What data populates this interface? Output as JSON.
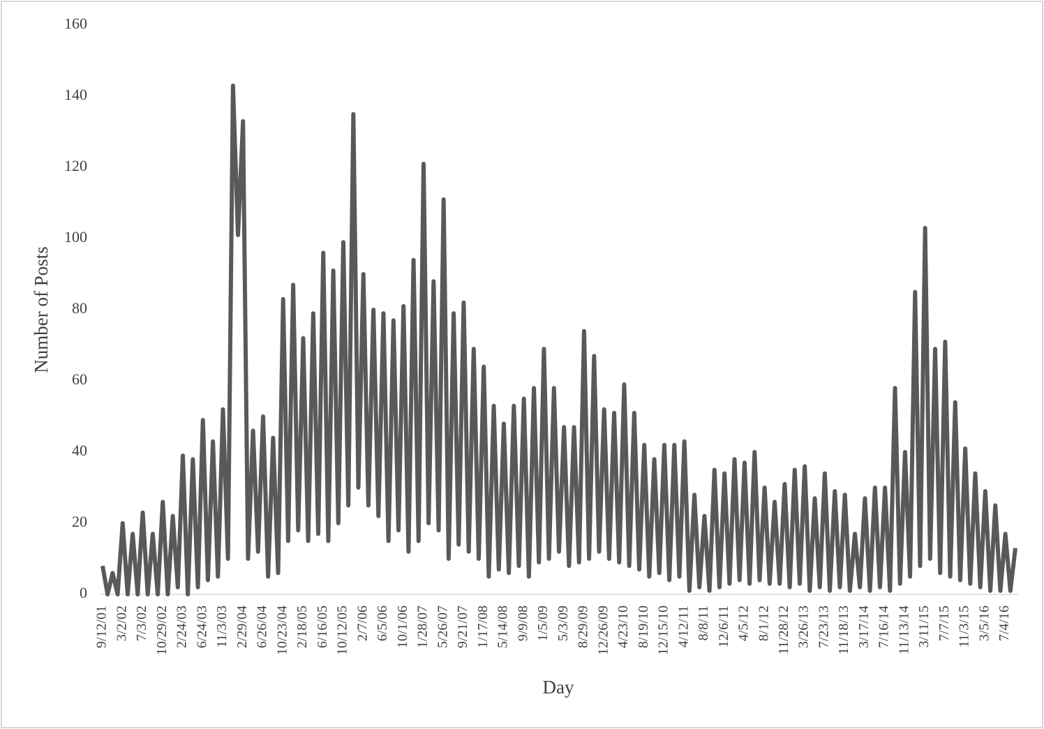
{
  "chart_data": {
    "type": "line",
    "x_label": "Day",
    "y_label": "Number of Posts",
    "categories": [
      "9/12/01",
      null,
      null,
      null,
      "3/2/02",
      null,
      null,
      null,
      "7/3/02",
      null,
      null,
      null,
      "10/29/02",
      null,
      null,
      null,
      "2/24/03",
      null,
      null,
      null,
      "6/24/03",
      null,
      null,
      null,
      "11/3/03",
      null,
      null,
      null,
      "2/29/04",
      null,
      null,
      null,
      "6/26/04",
      null,
      null,
      null,
      "10/23/04",
      null,
      null,
      null,
      "2/18/05",
      null,
      null,
      null,
      "6/16/05",
      null,
      null,
      null,
      "10/12/05",
      null,
      null,
      null,
      "2/7/06",
      null,
      null,
      null,
      "6/5/06",
      null,
      null,
      null,
      "10/1/06",
      null,
      null,
      null,
      "1/28/07",
      null,
      null,
      null,
      "5/26/07",
      null,
      null,
      null,
      "9/21/07",
      null,
      null,
      null,
      "1/17/08",
      null,
      null,
      null,
      "5/14/08",
      null,
      null,
      null,
      "9/9/08",
      null,
      null,
      null,
      "1/5/09",
      null,
      null,
      null,
      "5/3/09",
      null,
      null,
      null,
      "8/29/09",
      null,
      null,
      null,
      "12/26/09",
      null,
      null,
      null,
      "4/23/10",
      null,
      null,
      null,
      "8/19/10",
      null,
      null,
      null,
      "12/15/10",
      null,
      null,
      null,
      "4/12/11",
      null,
      null,
      null,
      "8/8/11",
      null,
      null,
      null,
      "12/6/11",
      null,
      null,
      null,
      "4/5/12",
      null,
      null,
      null,
      "8/1/12",
      null,
      null,
      null,
      "11/28/12",
      null,
      null,
      null,
      "3/26/13",
      null,
      null,
      null,
      "7/23/13",
      null,
      null,
      null,
      "11/18/13",
      null,
      null,
      null,
      "3/17/14",
      null,
      null,
      null,
      "7/16/14",
      null,
      null,
      null,
      "11/13/14",
      null,
      null,
      null,
      "3/11/15",
      null,
      null,
      null,
      "7/7/15",
      null,
      null,
      null,
      "11/3/15",
      null,
      null,
      null,
      "3/5/16",
      null,
      null,
      null,
      "7/4/16",
      null,
      null
    ],
    "series": [
      {
        "name": "Posts",
        "color": "#595959",
        "values": [
          8,
          0,
          6,
          0,
          20,
          0,
          17,
          0,
          23,
          0,
          17,
          0,
          26,
          0,
          22,
          2,
          39,
          0,
          38,
          2,
          49,
          4,
          43,
          5,
          52,
          10,
          143,
          101,
          133,
          10,
          46,
          12,
          50,
          5,
          44,
          6,
          83,
          15,
          87,
          18,
          72,
          15,
          79,
          17,
          96,
          15,
          91,
          20,
          99,
          25,
          135,
          30,
          90,
          25,
          80,
          22,
          79,
          15,
          77,
          18,
          81,
          12,
          94,
          15,
          121,
          20,
          88,
          18,
          111,
          10,
          79,
          14,
          82,
          12,
          69,
          10,
          64,
          5,
          53,
          7,
          48,
          6,
          53,
          8,
          55,
          5,
          58,
          9,
          69,
          10,
          58,
          12,
          47,
          8,
          47,
          9,
          74,
          10,
          67,
          12,
          52,
          10,
          51,
          9,
          59,
          8,
          51,
          7,
          42,
          5,
          38,
          6,
          42,
          4,
          42,
          5,
          43,
          1,
          28,
          2,
          22,
          1,
          35,
          2,
          34,
          3,
          38,
          4,
          37,
          3,
          40,
          4,
          30,
          3,
          26,
          3,
          31,
          2,
          35,
          3,
          36,
          1,
          27,
          2,
          34,
          1,
          29,
          2,
          28,
          1,
          17,
          2,
          27,
          1,
          30,
          2,
          30,
          1,
          58,
          3,
          40,
          5,
          85,
          8,
          103,
          10,
          69,
          6,
          71,
          5,
          54,
          4,
          41,
          3,
          34,
          2,
          29,
          1,
          25,
          1,
          17,
          1,
          13
        ]
      }
    ],
    "ylim": [
      0,
      160
    ],
    "yticks": [
      0,
      20,
      40,
      60,
      80,
      100,
      120,
      140,
      160
    ],
    "grid": false
  }
}
